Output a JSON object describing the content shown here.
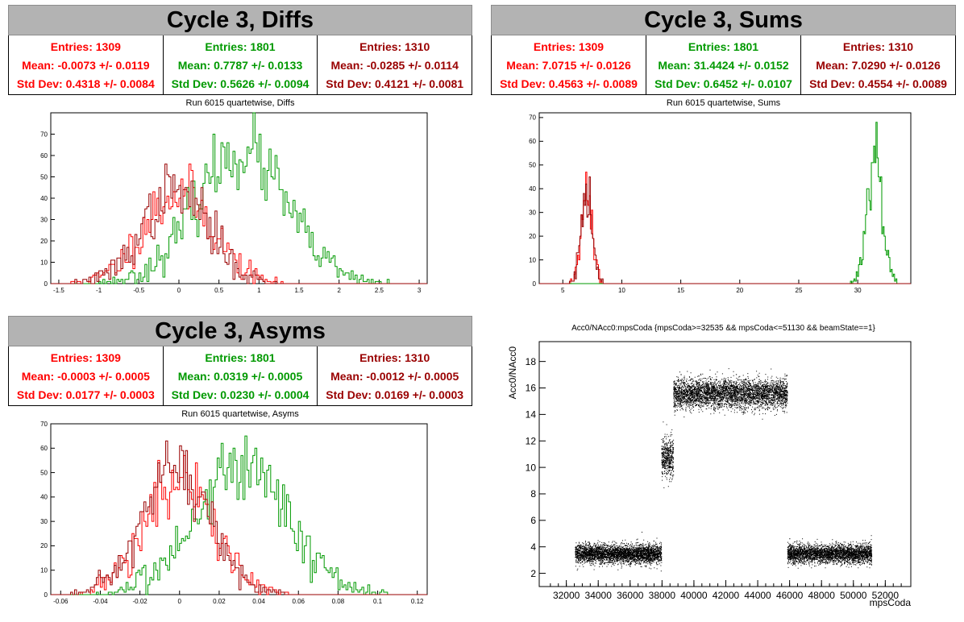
{
  "panels": {
    "diffs": {
      "title": "Cycle 3, Diffs",
      "subtitle": "Run 6015 quartetwise, Diffs",
      "stats": [
        {
          "entries": "Entries: 1309",
          "mean": "Mean: -0.0073 +/- 0.0119",
          "std": "Std Dev: 0.4318 +/- 0.0084",
          "color": "#ff0000"
        },
        {
          "entries": "Entries: 1801",
          "mean": "Mean: 0.7787 +/- 0.0133",
          "std": "Std Dev: 0.5626 +/- 0.0094",
          "color": "#009900"
        },
        {
          "entries": "Entries: 1310",
          "mean": "Mean: -0.0285 +/- 0.0114",
          "std": "Std Dev: 0.4121 +/- 0.0081",
          "color": "#990000"
        }
      ]
    },
    "sums": {
      "title": "Cycle 3, Sums",
      "subtitle": "Run 6015 quartetwise, Sums",
      "stats": [
        {
          "entries": "Entries: 1309",
          "mean": "Mean: 7.0715 +/- 0.0126",
          "std": "Std Dev: 0.4563 +/- 0.0089",
          "color": "#ff0000"
        },
        {
          "entries": "Entries: 1801",
          "mean": "Mean: 31.4424 +/- 0.0152",
          "std": "Std Dev: 0.6452 +/- 0.0107",
          "color": "#009900"
        },
        {
          "entries": "Entries: 1310",
          "mean": "Mean: 7.0290 +/- 0.0126",
          "std": "Std Dev: 0.4554 +/- 0.0089",
          "color": "#990000"
        }
      ]
    },
    "asyms": {
      "title": "Cycle 3, Asyms",
      "subtitle": "Run 6015 quartetwise, Asyms",
      "stats": [
        {
          "entries": "Entries: 1309",
          "mean": "Mean: -0.0003 +/- 0.0005",
          "std": "Std Dev: 0.0177 +/- 0.0003",
          "color": "#ff0000"
        },
        {
          "entries": "Entries: 1801",
          "mean": "Mean: 0.0319 +/- 0.0005",
          "std": "Std Dev: 0.0230 +/- 0.0004",
          "color": "#009900"
        },
        {
          "entries": "Entries: 1310",
          "mean": "Mean: -0.0012 +/- 0.0005",
          "std": "Std Dev: 0.0169 +/- 0.0003",
          "color": "#990000"
        }
      ]
    },
    "scatter": {
      "subtitle": "Acc0/NAcc0:mpsCoda {mpsCoda>=32535 && mpsCoda<=51130 && beamState==1}"
    }
  },
  "chart_data": [
    {
      "type": "histogram",
      "id": "diffs",
      "xlim": [
        -1.6,
        3.1
      ],
      "ylim": [
        0,
        80
      ],
      "xticks": [
        -1.5,
        -1,
        -0.5,
        0,
        0.5,
        1,
        1.5,
        2,
        2.5,
        3
      ],
      "xtick_labels": [
        "-1.5",
        "-1",
        "-0.5",
        "0",
        "0.5",
        "1",
        "1.5",
        "2",
        "2.5",
        "3"
      ],
      "yticks": [
        0,
        10,
        20,
        30,
        40,
        50,
        60,
        70
      ],
      "yticklabels": [
        "0",
        "10",
        "20",
        "30",
        "40",
        "50",
        "60",
        "70"
      ],
      "series": [
        {
          "color": "#ff0000",
          "mean": -0.0073,
          "sd": 0.4318,
          "peak": 52,
          "seed": 11
        },
        {
          "color": "#009900",
          "mean": 0.7787,
          "sd": 0.5626,
          "peak": 76,
          "seed": 23
        },
        {
          "color": "#990000",
          "mean": -0.0285,
          "sd": 0.4121,
          "peak": 53,
          "seed": 37
        }
      ]
    },
    {
      "type": "histogram",
      "id": "sums",
      "xlim": [
        3,
        34.5
      ],
      "ylim": [
        0,
        72
      ],
      "xticks": [
        5,
        10,
        15,
        20,
        25,
        30
      ],
      "xtick_labels": [
        "5",
        "10",
        "15",
        "20",
        "25",
        "30"
      ],
      "yticks": [
        0,
        10,
        20,
        30,
        40,
        50,
        60,
        70
      ],
      "yticklabels": [
        "0",
        "10",
        "20",
        "30",
        "40",
        "50",
        "60",
        "70"
      ],
      "series": [
        {
          "color": "#ff0000",
          "mean": 7.0715,
          "sd": 0.4563,
          "peak": 50,
          "seed": 41
        },
        {
          "color": "#009900",
          "mean": 31.4424,
          "sd": 0.6452,
          "peak": 69,
          "seed": 53
        },
        {
          "color": "#990000",
          "mean": 7.029,
          "sd": 0.4554,
          "peak": 50,
          "seed": 61
        }
      ]
    },
    {
      "type": "histogram",
      "id": "asyms",
      "xlim": [
        -0.065,
        0.125
      ],
      "ylim": [
        0,
        70
      ],
      "xticks": [
        -0.06,
        -0.04,
        -0.02,
        0,
        0.02,
        0.04,
        0.06,
        0.08,
        0.1,
        0.12
      ],
      "xtick_labels": [
        "-0.06",
        "-0.04",
        "-0.02",
        "0",
        "0.02",
        "0.04",
        "0.06",
        "0.08",
        "0.1",
        "0.12"
      ],
      "yticks": [
        0,
        10,
        20,
        30,
        40,
        50,
        60,
        70
      ],
      "yticklabels": [
        "0",
        "10",
        "20",
        "30",
        "40",
        "50",
        "60",
        "70"
      ],
      "series": [
        {
          "color": "#ff0000",
          "mean": -0.0003,
          "sd": 0.0177,
          "peak": 56,
          "seed": 71
        },
        {
          "color": "#009900",
          "mean": 0.0319,
          "sd": 0.023,
          "peak": 67,
          "seed": 83
        },
        {
          "color": "#990000",
          "mean": -0.0012,
          "sd": 0.0169,
          "peak": 62,
          "seed": 97
        }
      ]
    },
    {
      "type": "scatter",
      "id": "scatter",
      "xlabel": "mpsCoda",
      "ylabel": "Acc0/NAcc0",
      "xlim": [
        30300,
        53600
      ],
      "ylim": [
        1,
        19.5
      ],
      "xticks": [
        32000,
        34000,
        36000,
        38000,
        40000,
        42000,
        44000,
        46000,
        48000,
        50000,
        52000
      ],
      "xtick_labels": [
        "32000",
        "34000",
        "36000",
        "38000",
        "40000",
        "42000",
        "44000",
        "46000",
        "48000",
        "50000",
        "52000"
      ],
      "yticks": [
        2,
        4,
        6,
        8,
        10,
        12,
        14,
        16,
        18
      ],
      "yticklabels": [
        "2",
        "4",
        "6",
        "8",
        "10",
        "12",
        "14",
        "16",
        "18"
      ],
      "clusters": [
        {
          "x": [
            32535,
            37950
          ],
          "y_mean": 3.5,
          "y_sd": 0.35,
          "n": 3600
        },
        {
          "x": [
            37950,
            38700
          ],
          "y_mean": 10.8,
          "y_sd": 0.75,
          "n": 500
        },
        {
          "x": [
            38700,
            45850
          ],
          "y_mean": 15.6,
          "y_sd": 0.55,
          "n": 4200
        },
        {
          "x": [
            45850,
            51130
          ],
          "y_mean": 3.5,
          "y_sd": 0.35,
          "n": 3300
        }
      ],
      "color": "#000000"
    }
  ]
}
